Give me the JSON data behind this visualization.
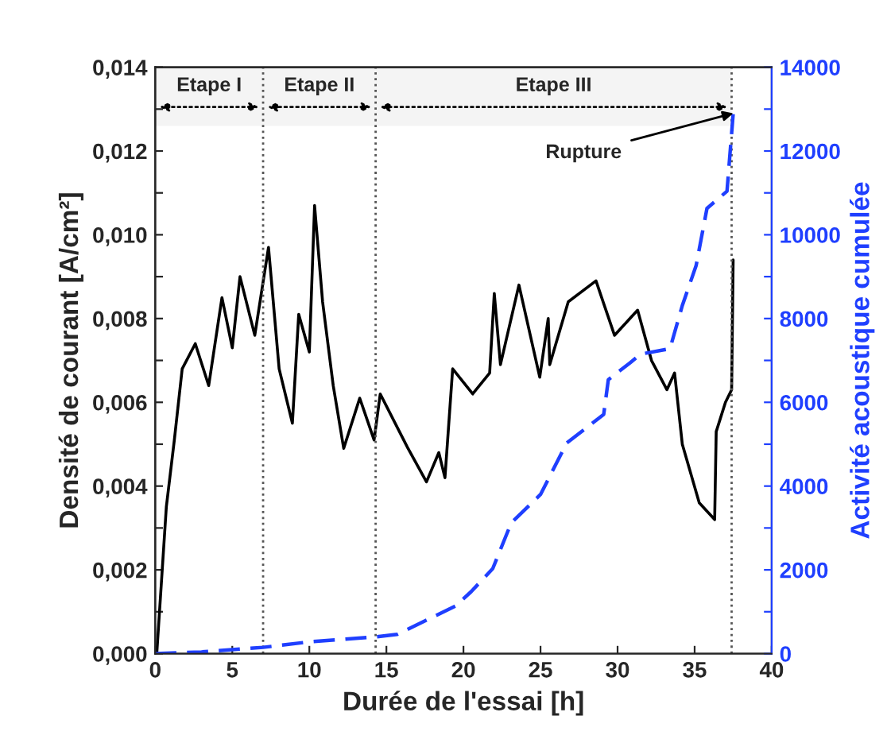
{
  "chart_data": {
    "type": "line",
    "xlabel": "Durée de l'essai [h]",
    "ylabel": "Densité de courant [A/cm²]",
    "y2label": "Activité acoustique cumulée",
    "xlim": [
      0,
      40
    ],
    "xticks": [
      0,
      5,
      10,
      15,
      20,
      25,
      30,
      35,
      40
    ],
    "ylim": [
      0,
      0.014
    ],
    "yticks": [
      {
        "value": 0,
        "label": "0,000"
      },
      {
        "value": 0.001,
        "label": null
      },
      {
        "value": 0.002,
        "label": "0,002"
      },
      {
        "value": 0.003,
        "label": null
      },
      {
        "value": 0.004,
        "label": "0,004"
      },
      {
        "value": 0.005,
        "label": null
      },
      {
        "value": 0.006,
        "label": "0,006"
      },
      {
        "value": 0.007,
        "label": null
      },
      {
        "value": 0.008,
        "label": "0,008"
      },
      {
        "value": 0.009,
        "label": null
      },
      {
        "value": 0.01,
        "label": "0,010"
      },
      {
        "value": 0.011,
        "label": null
      },
      {
        "value": 0.012,
        "label": "0,012"
      },
      {
        "value": 0.013,
        "label": null
      },
      {
        "value": 0.014,
        "label": "0,014"
      }
    ],
    "y2lim": [
      0,
      14000
    ],
    "y2ticks": [
      0,
      {
        "value": 1000,
        "label": null
      },
      2000,
      {
        "value": 3000,
        "label": null
      },
      4000,
      {
        "value": 5000,
        "label": null
      },
      6000,
      {
        "value": 7000,
        "label": null
      },
      8000,
      {
        "value": 9000,
        "label": null
      },
      10000,
      {
        "value": 11000,
        "label": null
      },
      12000,
      {
        "value": 13000,
        "label": null
      },
      14000
    ],
    "series": [
      {
        "color": "#000000",
        "line_style": "solid",
        "x": [
          0.1,
          0.72,
          1.24,
          1.75,
          2.6,
          3.47,
          4.33,
          5.0,
          5.5,
          6.46,
          7.35,
          8.04,
          8.9,
          9.31,
          10.0,
          10.34,
          10.86,
          11.55,
          12.23,
          13.27,
          14.2,
          14.6,
          16.4,
          17.6,
          18.4,
          18.8,
          19.3,
          20.6,
          21.7,
          22.0,
          22.4,
          23.6,
          24.95,
          25.5,
          25.6,
          26.8,
          28.6,
          29.8,
          31.3,
          32.2,
          33.2,
          33.7,
          34.2,
          35.3,
          36.3,
          36.4,
          37.0,
          37.4,
          37.5
        ],
        "values": [
          0.0,
          0.0035,
          0.0051,
          0.0068,
          0.0074,
          0.0064,
          0.0085,
          0.0073,
          0.009,
          0.0076,
          0.0097,
          0.0068,
          0.0055,
          0.0081,
          0.0072,
          0.0107,
          0.0084,
          0.0064,
          0.0049,
          0.0061,
          0.0051,
          0.0062,
          0.0049,
          0.0041,
          0.0048,
          0.0042,
          0.0068,
          0.0062,
          0.0067,
          0.0086,
          0.0069,
          0.0088,
          0.0066,
          0.008,
          0.0069,
          0.0084,
          0.0089,
          0.0076,
          0.0082,
          0.007,
          0.0063,
          0.0067,
          0.005,
          0.0036,
          0.0032,
          0.0053,
          0.006,
          0.0063,
          0.0094
        ]
      },
      {
        "color": "#1f3fff",
        "line_style": "dashed",
        "axis": "y2",
        "x": [
          0,
          3,
          7,
          10,
          14.3,
          15.7,
          19.5,
          20.5,
          21.9,
          23.1,
          25.0,
          26.7,
          29.1,
          29.4,
          30.8,
          31.5,
          33.4,
          34.2,
          35.1,
          35.8,
          37.1,
          37.5
        ],
        "values": [
          0,
          40,
          150,
          280,
          400,
          460,
          1140,
          1480,
          2030,
          3120,
          3800,
          5030,
          5710,
          6540,
          6940,
          7150,
          7280,
          8310,
          9270,
          10630,
          11040,
          12880
        ]
      }
    ],
    "ref_lines": [
      {
        "axis": "x",
        "value": 7.0,
        "line_style": "dotted",
        "color": "#555555"
      },
      {
        "axis": "x",
        "value": 14.3,
        "line_style": "dotted",
        "color": "#555555"
      },
      {
        "axis": "x",
        "value": 37.4,
        "line_style": "dotted",
        "color": "#555555"
      }
    ],
    "bands": [
      {
        "axis": "x",
        "from": 0,
        "to": 7.0,
        "label": "Etape I",
        "color": "#f4f4f4"
      },
      {
        "axis": "x",
        "from": 7.0,
        "to": 14.3,
        "label": "Etape II",
        "color": "#f4f4f4"
      },
      {
        "axis": "x",
        "from": 14.3,
        "to": 37.4,
        "label": "Etape III",
        "color": "#f4f4f4"
      }
    ],
    "annotations": [
      {
        "text": "Rupture",
        "x": 37.5,
        "y": 0.0129
      }
    ],
    "legend": false,
    "grid": false
  }
}
